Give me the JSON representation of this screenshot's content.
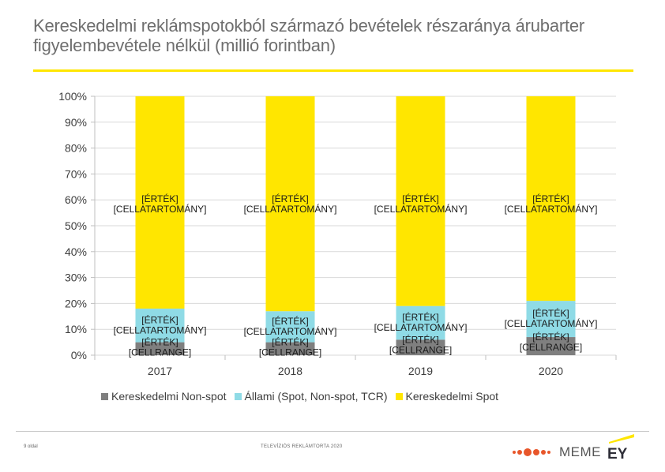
{
  "title": "Kereskedelmi reklámspotokból származó bevételek részaránya árubarter figyelembevétele nélkül (millió forintban)",
  "chart_data": {
    "type": "bar",
    "stacked": true,
    "categories": [
      "2017",
      "2018",
      "2019",
      "2020"
    ],
    "y_ticks": [
      "0%",
      "10%",
      "20%",
      "30%",
      "40%",
      "50%",
      "60%",
      "70%",
      "80%",
      "90%",
      "100%"
    ],
    "ylim": [
      0,
      100
    ],
    "grid": true,
    "legend_position": "bottom",
    "series": [
      {
        "name": "Kereskedelmi Non-spot",
        "color": "#7f7f7f",
        "values": [
          5,
          5,
          6,
          7
        ],
        "labels": [
          "[ÉRTÉK]\n[CELLRANGE]",
          "[ÉRTÉK]\n[CELLRANGE]",
          "[ÉRTÉK]\n[CELLRANGE]",
          "[ÉRTÉK]\n[CELLRANGE]"
        ]
      },
      {
        "name": "Állami (Spot, Non-spot, TCR)",
        "color": "#8fdbe6",
        "values": [
          13,
          12,
          13,
          14
        ],
        "labels": [
          "[ÉRTÉK]\n[CELLATARTOMÁNY]",
          "[ÉRTÉK]\n[CELLATARTOMÁNY]",
          "[ÉRTÉK]\n[CELLATARTOMÁNY]",
          "[ÉRTÉK]\n[CELLATARTOMÁNY]"
        ]
      },
      {
        "name": "Kereskedelmi Spot",
        "color": "#ffe600",
        "values": [
          82,
          83,
          81,
          79
        ],
        "labels": [
          "[ÉRTÉK]\n[CELLATARTOMÁNY]",
          "[ÉRTÉK]\n[CELLATARTOMÁNY]",
          "[ÉRTÉK]\n[CELLATARTOMÁNY]",
          "[ÉRTÉK]\n[CELLATARTOMÁNY]"
        ]
      }
    ]
  },
  "legend": [
    {
      "label": "Kereskedelmi Non-spot",
      "color": "#7f7f7f"
    },
    {
      "label": "Állami (Spot, Non-spot, TCR)",
      "color": "#8fdbe6"
    },
    {
      "label": "Kereskedelmi Spot",
      "color": "#ffe600"
    }
  ],
  "footer": {
    "page": "9 oldal",
    "center": "TELEVÍZIÓS REKLÁMTORTA 2020",
    "meme_logo": "MEME",
    "ey_logo": "EY"
  }
}
